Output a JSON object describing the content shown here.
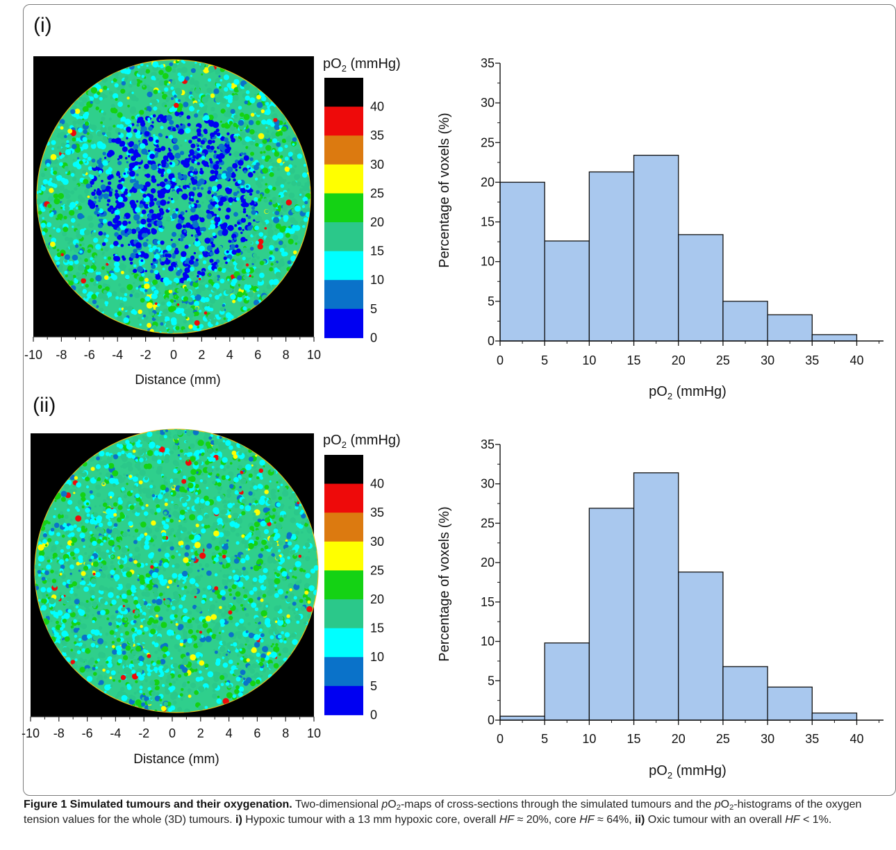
{
  "panels": [
    {
      "id": "i",
      "label": "(i)",
      "map": {
        "colorbar_title": "pO2 (mmHg)",
        "colorbar_ticks": [
          "40",
          "35",
          "30",
          "25",
          "20",
          "15",
          "10",
          "5",
          "0"
        ],
        "colorbar_colors": [
          "#000000",
          "#ee0a0a",
          "#dc7a10",
          "#ffff00",
          "#14d214",
          "#2bc88a",
          "#00ffff",
          "#0a72c9",
          "#0000f2"
        ],
        "x_ticks": [
          "-10",
          "-8",
          "-6",
          "-4",
          "-2",
          "0",
          "2",
          "4",
          "6",
          "8",
          "10"
        ],
        "xlabel": "Distance (mm)",
        "hypoxic_core": true
      },
      "histogram": {
        "y_ticks": [
          "0",
          "5",
          "10",
          "15",
          "20",
          "25",
          "30",
          "35"
        ],
        "x_ticks": [
          "0",
          "5",
          "10",
          "15",
          "20",
          "25",
          "30",
          "35",
          "40"
        ]
      }
    },
    {
      "id": "ii",
      "label": "(ii)",
      "map": {
        "colorbar_title": "pO2 (mmHg)",
        "colorbar_ticks": [
          "40",
          "35",
          "30",
          "25",
          "20",
          "15",
          "10",
          "5",
          "0"
        ],
        "colorbar_colors": [
          "#000000",
          "#ee0a0a",
          "#dc7a10",
          "#ffff00",
          "#14d214",
          "#2bc88a",
          "#00ffff",
          "#0a72c9",
          "#0000f2"
        ],
        "x_ticks": [
          "-10",
          "-8",
          "-6",
          "-4",
          "-2",
          "0",
          "2",
          "4",
          "6",
          "8",
          "10"
        ],
        "xlabel": "Distance (mm)",
        "hypoxic_core": false
      },
      "histogram": {
        "y_ticks": [
          "0",
          "5",
          "10",
          "15",
          "20",
          "25",
          "30",
          "35"
        ],
        "x_ticks": [
          "0",
          "5",
          "10",
          "15",
          "20",
          "25",
          "30",
          "35",
          "40"
        ]
      }
    }
  ],
  "chart_data": [
    {
      "type": "bar",
      "panel": "(i)",
      "bin_edges": [
        0,
        5,
        10,
        15,
        20,
        25,
        30,
        35,
        40
      ],
      "values": [
        20.0,
        12.6,
        21.3,
        23.4,
        13.4,
        5.0,
        3.3,
        0.8
      ],
      "xlabel": "pO2 (mmHg)",
      "ylabel": "Percentage of voxels (%)",
      "xlim": [
        0,
        43
      ],
      "ylim": [
        0,
        35
      ],
      "bar_color": "#a9c8ee",
      "grid": false
    },
    {
      "type": "bar",
      "panel": "(ii)",
      "bin_edges": [
        0,
        5,
        10,
        15,
        20,
        25,
        30,
        35,
        40
      ],
      "values": [
        0.5,
        9.8,
        26.9,
        31.4,
        18.8,
        6.8,
        4.2,
        0.9
      ],
      "xlabel": "pO2 (mmHg)",
      "ylabel": "Percentage of voxels (%)",
      "xlim": [
        0,
        43
      ],
      "ylim": [
        0,
        35
      ],
      "bar_color": "#a9c8ee",
      "grid": false
    }
  ],
  "caption": {
    "title": "Figure 1 Simulated tumours and their oxygenation.",
    "s1": " Two-dimensional ",
    "p": "p",
    "o2": "O",
    "two": "2",
    "s2": "-maps of cross-sections through the simulated tumours and the ",
    "s3": "-histograms of the oxygen tension values for the whole (3D) tumours. ",
    "i_label": "i)",
    "s4": " Hypoxic tumour with a 13 mm hypoxic core, overall ",
    "hf": "HF",
    "s5": " ≈ 20%, core ",
    "s6": " ≈ 64%, ",
    "ii_label": "ii)",
    "s7": " Oxic tumour with an overall ",
    "s8": " < 1%."
  }
}
